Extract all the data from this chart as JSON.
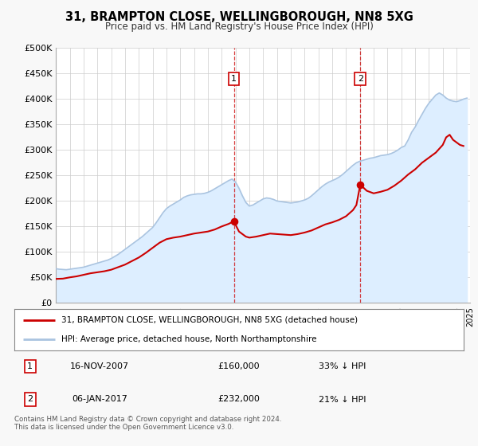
{
  "title": "31, BRAMPTON CLOSE, WELLINGBOROUGH, NN8 5XG",
  "subtitle": "Price paid vs. HM Land Registry's House Price Index (HPI)",
  "legend_line1": "31, BRAMPTON CLOSE, WELLINGBOROUGH, NN8 5XG (detached house)",
  "legend_line2": "HPI: Average price, detached house, North Northamptonshire",
  "annotation1_label": "1",
  "annotation1_date": "16-NOV-2007",
  "annotation1_price": "£160,000",
  "annotation1_hpi": "33% ↓ HPI",
  "annotation1_year": 2007.88,
  "annotation1_value": 160000,
  "annotation2_label": "2",
  "annotation2_date": "06-JAN-2017",
  "annotation2_price": "£232,000",
  "annotation2_hpi": "21% ↓ HPI",
  "annotation2_year": 2017.03,
  "annotation2_value": 232000,
  "ylim": [
    0,
    500000
  ],
  "yticks": [
    0,
    50000,
    100000,
    150000,
    200000,
    250000,
    300000,
    350000,
    400000,
    450000,
    500000
  ],
  "ytick_labels": [
    "£0",
    "£50K",
    "£100K",
    "£150K",
    "£200K",
    "£250K",
    "£300K",
    "£350K",
    "£400K",
    "£450K",
    "£500K"
  ],
  "xlim_start": 1995,
  "xlim_end": 2025,
  "background_color": "#f8f8f8",
  "plot_bg_color": "#ffffff",
  "grid_color": "#cccccc",
  "hpi_color": "#aac4e0",
  "price_color": "#cc0000",
  "fill_color": "#ddeeff",
  "footnote": "Contains HM Land Registry data © Crown copyright and database right 2024.\nThis data is licensed under the Open Government Licence v3.0.",
  "hpi_data": [
    [
      1995.0,
      67000
    ],
    [
      1995.25,
      66000
    ],
    [
      1995.5,
      65500
    ],
    [
      1995.75,
      65000
    ],
    [
      1996.0,
      66000
    ],
    [
      1996.25,
      67000
    ],
    [
      1996.5,
      68000
    ],
    [
      1996.75,
      69000
    ],
    [
      1997.0,
      70000
    ],
    [
      1997.25,
      72000
    ],
    [
      1997.5,
      74000
    ],
    [
      1997.75,
      76000
    ],
    [
      1998.0,
      78000
    ],
    [
      1998.25,
      80000
    ],
    [
      1998.5,
      82000
    ],
    [
      1998.75,
      84000
    ],
    [
      1999.0,
      87000
    ],
    [
      1999.25,
      91000
    ],
    [
      1999.5,
      95000
    ],
    [
      1999.75,
      100000
    ],
    [
      2000.0,
      105000
    ],
    [
      2000.25,
      110000
    ],
    [
      2000.5,
      115000
    ],
    [
      2000.75,
      120000
    ],
    [
      2001.0,
      125000
    ],
    [
      2001.25,
      130000
    ],
    [
      2001.5,
      136000
    ],
    [
      2001.75,
      142000
    ],
    [
      2002.0,
      148000
    ],
    [
      2002.25,
      157000
    ],
    [
      2002.5,
      167000
    ],
    [
      2002.75,
      177000
    ],
    [
      2003.0,
      185000
    ],
    [
      2003.25,
      190000
    ],
    [
      2003.5,
      194000
    ],
    [
      2003.75,
      198000
    ],
    [
      2004.0,
      202000
    ],
    [
      2004.25,
      207000
    ],
    [
      2004.5,
      210000
    ],
    [
      2004.75,
      212000
    ],
    [
      2005.0,
      213000
    ],
    [
      2005.25,
      214000
    ],
    [
      2005.5,
      214000
    ],
    [
      2005.75,
      215000
    ],
    [
      2006.0,
      217000
    ],
    [
      2006.25,
      220000
    ],
    [
      2006.5,
      224000
    ],
    [
      2006.75,
      228000
    ],
    [
      2007.0,
      232000
    ],
    [
      2007.25,
      236000
    ],
    [
      2007.5,
      240000
    ],
    [
      2007.75,
      243000
    ],
    [
      2008.0,
      237000
    ],
    [
      2008.25,
      225000
    ],
    [
      2008.5,
      210000
    ],
    [
      2008.75,
      197000
    ],
    [
      2009.0,
      190000
    ],
    [
      2009.25,
      192000
    ],
    [
      2009.5,
      196000
    ],
    [
      2009.75,
      200000
    ],
    [
      2010.0,
      204000
    ],
    [
      2010.25,
      206000
    ],
    [
      2010.5,
      205000
    ],
    [
      2010.75,
      203000
    ],
    [
      2011.0,
      200000
    ],
    [
      2011.25,
      199000
    ],
    [
      2011.5,
      198000
    ],
    [
      2011.75,
      197000
    ],
    [
      2012.0,
      196000
    ],
    [
      2012.25,
      197000
    ],
    [
      2012.5,
      198000
    ],
    [
      2012.75,
      200000
    ],
    [
      2013.0,
      202000
    ],
    [
      2013.25,
      205000
    ],
    [
      2013.5,
      210000
    ],
    [
      2013.75,
      216000
    ],
    [
      2014.0,
      222000
    ],
    [
      2014.25,
      228000
    ],
    [
      2014.5,
      233000
    ],
    [
      2014.75,
      237000
    ],
    [
      2015.0,
      240000
    ],
    [
      2015.25,
      243000
    ],
    [
      2015.5,
      247000
    ],
    [
      2015.75,
      252000
    ],
    [
      2016.0,
      258000
    ],
    [
      2016.25,
      264000
    ],
    [
      2016.5,
      270000
    ],
    [
      2016.75,
      275000
    ],
    [
      2017.0,
      278000
    ],
    [
      2017.25,
      280000
    ],
    [
      2017.5,
      282000
    ],
    [
      2017.75,
      284000
    ],
    [
      2018.0,
      285000
    ],
    [
      2018.25,
      287000
    ],
    [
      2018.5,
      289000
    ],
    [
      2018.75,
      290000
    ],
    [
      2019.0,
      291000
    ],
    [
      2019.25,
      293000
    ],
    [
      2019.5,
      296000
    ],
    [
      2019.75,
      300000
    ],
    [
      2020.0,
      305000
    ],
    [
      2020.25,
      308000
    ],
    [
      2020.5,
      320000
    ],
    [
      2020.75,
      335000
    ],
    [
      2021.0,
      345000
    ],
    [
      2021.25,
      358000
    ],
    [
      2021.5,
      370000
    ],
    [
      2021.75,
      382000
    ],
    [
      2022.0,
      392000
    ],
    [
      2022.25,
      400000
    ],
    [
      2022.5,
      408000
    ],
    [
      2022.75,
      412000
    ],
    [
      2023.0,
      408000
    ],
    [
      2023.25,
      402000
    ],
    [
      2023.5,
      398000
    ],
    [
      2023.75,
      396000
    ],
    [
      2024.0,
      395000
    ],
    [
      2024.25,
      397000
    ],
    [
      2024.5,
      400000
    ],
    [
      2024.75,
      402000
    ]
  ],
  "price_data": [
    [
      1995.0,
      47000
    ],
    [
      1995.5,
      47500
    ],
    [
      1996.0,
      50000
    ],
    [
      1996.5,
      52000
    ],
    [
      1997.0,
      55000
    ],
    [
      1997.5,
      58000
    ],
    [
      1998.0,
      60000
    ],
    [
      1998.5,
      62000
    ],
    [
      1999.0,
      65000
    ],
    [
      1999.5,
      70000
    ],
    [
      2000.0,
      75000
    ],
    [
      2000.5,
      82000
    ],
    [
      2001.0,
      89000
    ],
    [
      2001.5,
      98000
    ],
    [
      2002.0,
      108000
    ],
    [
      2002.5,
      118000
    ],
    [
      2003.0,
      125000
    ],
    [
      2003.5,
      128000
    ],
    [
      2004.0,
      130000
    ],
    [
      2004.5,
      133000
    ],
    [
      2005.0,
      136000
    ],
    [
      2005.5,
      138000
    ],
    [
      2006.0,
      140000
    ],
    [
      2006.5,
      144000
    ],
    [
      2007.0,
      150000
    ],
    [
      2007.5,
      155000
    ],
    [
      2007.88,
      160000
    ],
    [
      2008.25,
      140000
    ],
    [
      2008.75,
      130000
    ],
    [
      2009.0,
      128000
    ],
    [
      2009.5,
      130000
    ],
    [
      2010.0,
      133000
    ],
    [
      2010.5,
      136000
    ],
    [
      2011.0,
      135000
    ],
    [
      2011.5,
      134000
    ],
    [
      2012.0,
      133000
    ],
    [
      2012.5,
      135000
    ],
    [
      2013.0,
      138000
    ],
    [
      2013.5,
      142000
    ],
    [
      2014.0,
      148000
    ],
    [
      2014.5,
      154000
    ],
    [
      2015.0,
      158000
    ],
    [
      2015.5,
      163000
    ],
    [
      2016.0,
      170000
    ],
    [
      2016.5,
      182000
    ],
    [
      2016.75,
      192000
    ],
    [
      2017.03,
      232000
    ],
    [
      2017.5,
      220000
    ],
    [
      2018.0,
      215000
    ],
    [
      2018.5,
      218000
    ],
    [
      2019.0,
      222000
    ],
    [
      2019.5,
      230000
    ],
    [
      2020.0,
      240000
    ],
    [
      2020.5,
      252000
    ],
    [
      2021.0,
      262000
    ],
    [
      2021.5,
      275000
    ],
    [
      2022.0,
      285000
    ],
    [
      2022.5,
      295000
    ],
    [
      2023.0,
      310000
    ],
    [
      2023.25,
      325000
    ],
    [
      2023.5,
      330000
    ],
    [
      2023.75,
      320000
    ],
    [
      2024.0,
      315000
    ],
    [
      2024.25,
      310000
    ],
    [
      2024.5,
      308000
    ]
  ]
}
